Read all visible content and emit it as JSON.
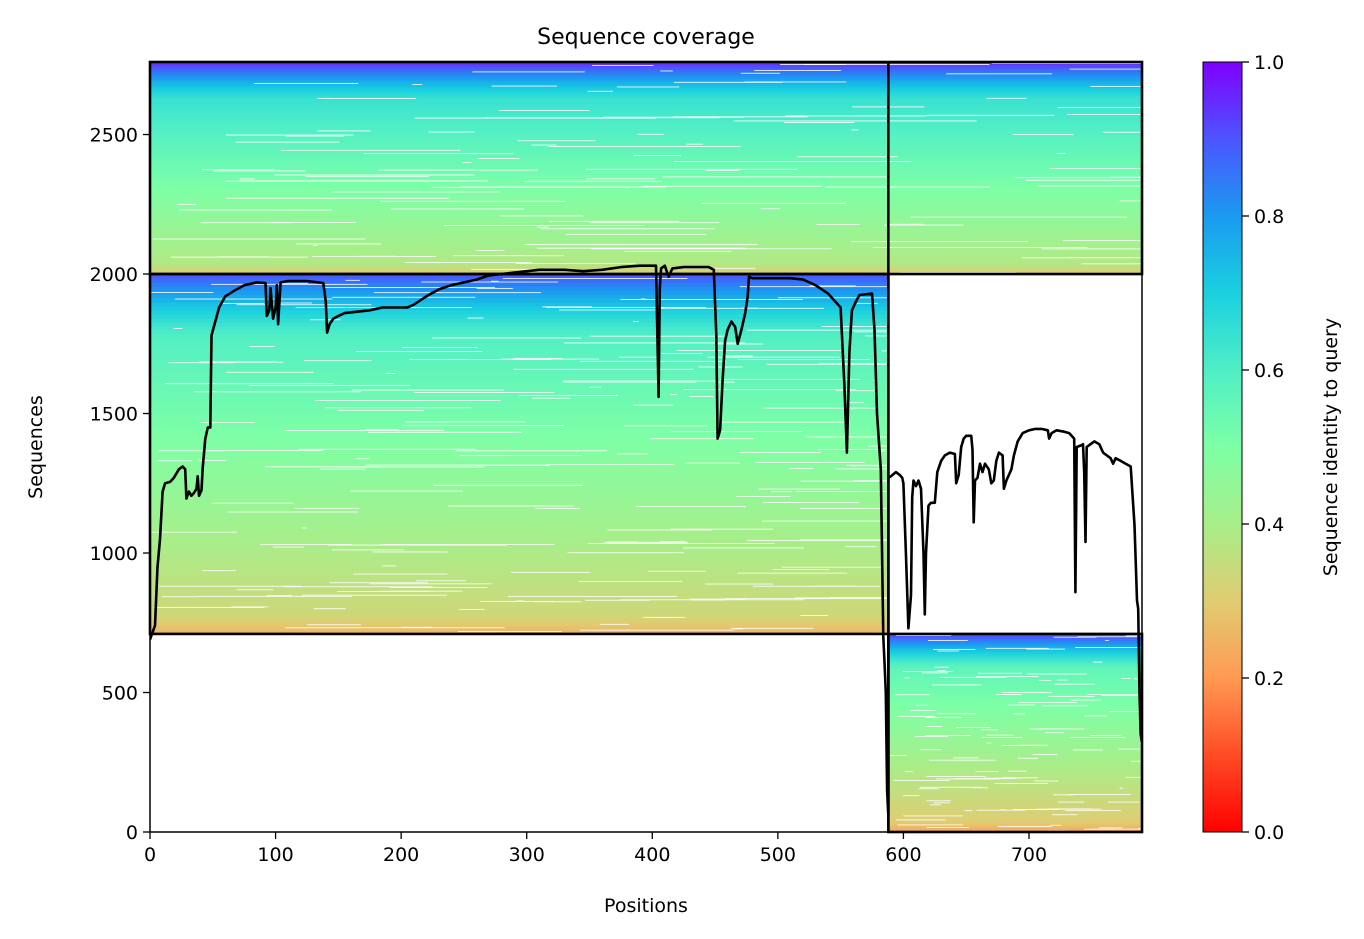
{
  "chart_data": {
    "type": "heatmap",
    "title": "Sequence coverage",
    "xlabel": "Positions",
    "ylabel": "Sequences",
    "xlim": [
      0,
      790
    ],
    "ylim": [
      0,
      2760
    ],
    "xticks": [
      0,
      100,
      200,
      300,
      400,
      500,
      600,
      700
    ],
    "yticks": [
      0,
      500,
      1000,
      1500,
      2000,
      2500
    ],
    "grid": false,
    "colorbar": {
      "label": "Sequence identity to query",
      "range": [
        0,
        1
      ],
      "ticks": [
        "0.0",
        "0.2",
        "0.4",
        "0.6",
        "0.8",
        "1.0"
      ],
      "colormap": "rainbow_r"
    },
    "chain_boundary_position": 588,
    "blocks": [
      {
        "name": "paired",
        "x": [
          0,
          790
        ],
        "sequences": [
          2000,
          2760
        ],
        "identity_bottom": 0.3,
        "identity_top": 0.95
      },
      {
        "name": "chain A unpaired",
        "x": [
          0,
          588
        ],
        "sequences": [
          710,
          2000
        ],
        "identity_bottom": 0.25,
        "identity_top": 0.9
      },
      {
        "name": "chain B unpaired",
        "x": [
          588,
          790
        ],
        "sequences": [
          0,
          710
        ],
        "identity_bottom": 0.22,
        "identity_top": 0.92
      }
    ],
    "coverage_line": {
      "color": "#000000",
      "points": [
        [
          0,
          690
        ],
        [
          4,
          740
        ],
        [
          6,
          950
        ],
        [
          8,
          1050
        ],
        [
          10,
          1220
        ],
        [
          12,
          1250
        ],
        [
          16,
          1255
        ],
        [
          19,
          1270
        ],
        [
          23,
          1300
        ],
        [
          26,
          1310
        ],
        [
          28,
          1300
        ],
        [
          29,
          1195
        ],
        [
          31,
          1220
        ],
        [
          33,
          1205
        ],
        [
          35,
          1215
        ],
        [
          37,
          1230
        ],
        [
          38,
          1275
        ],
        [
          39,
          1205
        ],
        [
          41,
          1225
        ],
        [
          42,
          1305
        ],
        [
          44,
          1410
        ],
        [
          46,
          1450
        ],
        [
          48,
          1450
        ],
        [
          49,
          1780
        ],
        [
          52,
          1830
        ],
        [
          55,
          1880
        ],
        [
          60,
          1920
        ],
        [
          67,
          1940
        ],
        [
          75,
          1960
        ],
        [
          85,
          1970
        ],
        [
          92,
          1968
        ],
        [
          93,
          1850
        ],
        [
          95,
          1870
        ],
        [
          96,
          1950
        ],
        [
          98,
          1840
        ],
        [
          100,
          1880
        ],
        [
          101,
          1960
        ],
        [
          102,
          1820
        ],
        [
          104,
          1970
        ],
        [
          110,
          1975
        ],
        [
          125,
          1975
        ],
        [
          138,
          1968
        ],
        [
          140,
          1900
        ],
        [
          141,
          1790
        ],
        [
          143,
          1820
        ],
        [
          146,
          1840
        ],
        [
          150,
          1850
        ],
        [
          155,
          1860
        ],
        [
          165,
          1865
        ],
        [
          175,
          1870
        ],
        [
          185,
          1880
        ],
        [
          205,
          1880
        ],
        [
          210,
          1890
        ],
        [
          220,
          1920
        ],
        [
          230,
          1945
        ],
        [
          240,
          1960
        ],
        [
          250,
          1970
        ],
        [
          260,
          1980
        ],
        [
          270,
          1995
        ],
        [
          290,
          2005
        ],
        [
          310,
          2015
        ],
        [
          330,
          2015
        ],
        [
          345,
          2010
        ],
        [
          360,
          2015
        ],
        [
          375,
          2025
        ],
        [
          390,
          2030
        ],
        [
          403,
          2030
        ],
        [
          405,
          1560
        ],
        [
          406,
          1950
        ],
        [
          407,
          2020
        ],
        [
          410,
          2030
        ],
        [
          413,
          1990
        ],
        [
          416,
          2020
        ],
        [
          425,
          2025
        ],
        [
          445,
          2025
        ],
        [
          449,
          2015
        ],
        [
          451,
          1780
        ],
        [
          452,
          1410
        ],
        [
          454,
          1440
        ],
        [
          456,
          1620
        ],
        [
          458,
          1760
        ],
        [
          460,
          1800
        ],
        [
          463,
          1830
        ],
        [
          466,
          1810
        ],
        [
          468,
          1750
        ],
        [
          471,
          1800
        ],
        [
          474,
          1860
        ],
        [
          476,
          1920
        ],
        [
          477,
          1990
        ],
        [
          480,
          1985
        ],
        [
          500,
          1985
        ],
        [
          510,
          1985
        ],
        [
          520,
          1980
        ],
        [
          530,
          1960
        ],
        [
          540,
          1930
        ],
        [
          550,
          1880
        ],
        [
          553,
          1600
        ],
        [
          555,
          1360
        ],
        [
          557,
          1720
        ],
        [
          559,
          1870
        ],
        [
          562,
          1900
        ],
        [
          565,
          1925
        ],
        [
          575,
          1930
        ],
        [
          577,
          1800
        ],
        [
          579,
          1500
        ],
        [
          582,
          1300
        ],
        [
          584,
          700
        ],
        [
          585,
          600
        ],
        [
          586,
          500
        ],
        [
          587,
          150
        ],
        [
          588,
          60
        ],
        [
          588,
          1270
        ],
        [
          590,
          1275
        ],
        [
          594,
          1290
        ],
        [
          597,
          1280
        ],
        [
          599,
          1270
        ],
        [
          600,
          1250
        ],
        [
          602,
          1000
        ],
        [
          604,
          730
        ],
        [
          606,
          850
        ],
        [
          607,
          1200
        ],
        [
          608,
          1260
        ],
        [
          610,
          1240
        ],
        [
          612,
          1260
        ],
        [
          614,
          1230
        ],
        [
          616,
          1000
        ],
        [
          617,
          780
        ],
        [
          618,
          1000
        ],
        [
          620,
          1170
        ],
        [
          622,
          1180
        ],
        [
          625,
          1180
        ],
        [
          627,
          1290
        ],
        [
          630,
          1330
        ],
        [
          633,
          1350
        ],
        [
          637,
          1360
        ],
        [
          641,
          1355
        ],
        [
          642,
          1250
        ],
        [
          644,
          1280
        ],
        [
          646,
          1380
        ],
        [
          648,
          1410
        ],
        [
          650,
          1420
        ],
        [
          654,
          1420
        ],
        [
          655,
          1370
        ],
        [
          656,
          1110
        ],
        [
          657,
          1260
        ],
        [
          659,
          1270
        ],
        [
          661,
          1320
        ],
        [
          663,
          1290
        ],
        [
          665,
          1320
        ],
        [
          668,
          1300
        ],
        [
          670,
          1250
        ],
        [
          672,
          1260
        ],
        [
          674,
          1330
        ],
        [
          676,
          1360
        ],
        [
          679,
          1350
        ],
        [
          680,
          1230
        ],
        [
          682,
          1260
        ],
        [
          684,
          1280
        ],
        [
          686,
          1300
        ],
        [
          688,
          1350
        ],
        [
          691,
          1400
        ],
        [
          695,
          1430
        ],
        [
          700,
          1440
        ],
        [
          705,
          1445
        ],
        [
          710,
          1445
        ],
        [
          715,
          1440
        ],
        [
          716,
          1410
        ],
        [
          718,
          1430
        ],
        [
          722,
          1440
        ],
        [
          728,
          1435
        ],
        [
          732,
          1430
        ],
        [
          736,
          1410
        ],
        [
          737,
          860
        ],
        [
          738,
          1380
        ],
        [
          741,
          1385
        ],
        [
          743,
          1390
        ],
        [
          744,
          1290
        ],
        [
          745,
          1040
        ],
        [
          746,
          1380
        ],
        [
          749,
          1390
        ],
        [
          752,
          1400
        ],
        [
          756,
          1390
        ],
        [
          759,
          1360
        ],
        [
          762,
          1350
        ],
        [
          765,
          1340
        ],
        [
          767,
          1320
        ],
        [
          769,
          1340
        ],
        [
          773,
          1330
        ],
        [
          777,
          1320
        ],
        [
          781,
          1310
        ],
        [
          784,
          1100
        ],
        [
          786,
          830
        ],
        [
          787,
          800
        ],
        [
          788,
          500
        ],
        [
          789,
          350
        ],
        [
          790,
          320
        ]
      ]
    }
  }
}
